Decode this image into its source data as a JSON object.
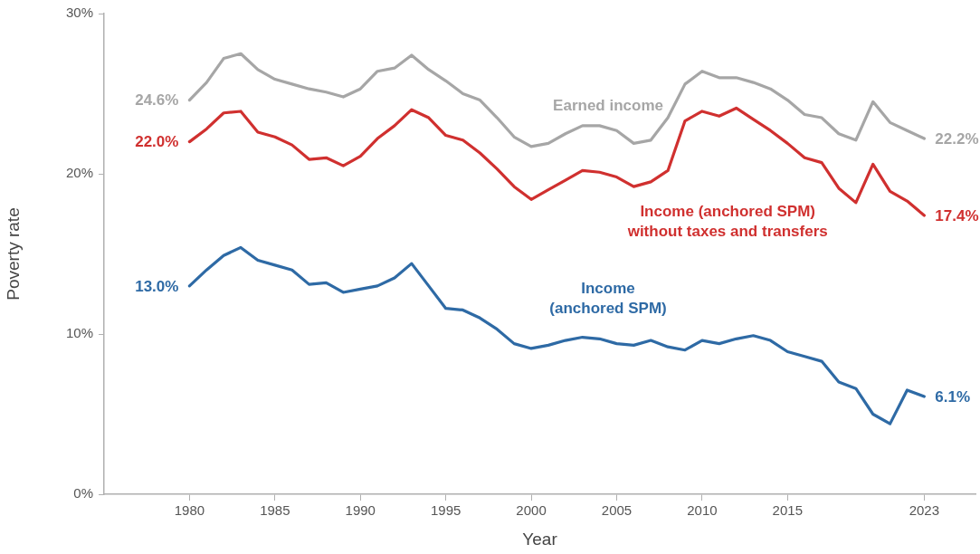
{
  "chart_data": {
    "type": "line",
    "xlabel": "Year",
    "ylabel": "Poverty rate",
    "x": [
      1980,
      1981,
      1982,
      1983,
      1984,
      1985,
      1986,
      1987,
      1988,
      1989,
      1990,
      1991,
      1992,
      1993,
      1994,
      1995,
      1996,
      1997,
      1998,
      1999,
      2000,
      2001,
      2002,
      2003,
      2004,
      2005,
      2006,
      2007,
      2008,
      2009,
      2010,
      2011,
      2012,
      2013,
      2014,
      2015,
      2016,
      2017,
      2018,
      2019,
      2020,
      2021,
      2022,
      2023
    ],
    "series": [
      {
        "name": "Earned income",
        "color": "#a6a6a6",
        "values": [
          24.6,
          25.7,
          27.2,
          27.5,
          26.5,
          25.9,
          25.6,
          25.3,
          25.1,
          24.8,
          25.3,
          26.4,
          26.6,
          27.4,
          26.5,
          25.8,
          25.0,
          24.6,
          23.5,
          22.3,
          21.7,
          21.9,
          22.5,
          23.0,
          23.0,
          22.7,
          21.9,
          22.1,
          23.5,
          25.6,
          26.4,
          26.0,
          26.0,
          25.7,
          25.3,
          24.6,
          23.7,
          23.5,
          22.5,
          22.1,
          24.5,
          23.2,
          22.7,
          22.2
        ],
        "value_labels": [
          "24.6%",
          null,
          null,
          null,
          null,
          null,
          null,
          null,
          null,
          null,
          null,
          null,
          null,
          null,
          null,
          null,
          null,
          null,
          null,
          null,
          null,
          null,
          null,
          null,
          null,
          null,
          null,
          null,
          null,
          null,
          null,
          null,
          null,
          null,
          null,
          null,
          null,
          null,
          null,
          null,
          null,
          null,
          null,
          "22.2%"
        ]
      },
      {
        "name": "Income (anchored SPM) without taxes and transfers",
        "color": "#d0302f",
        "values": [
          22.0,
          22.8,
          23.8,
          23.9,
          22.6,
          22.3,
          21.8,
          20.9,
          21.0,
          20.5,
          21.1,
          22.2,
          23.0,
          24.0,
          23.5,
          22.4,
          22.1,
          21.3,
          20.3,
          19.2,
          18.4,
          19.0,
          19.6,
          20.2,
          20.1,
          19.8,
          19.2,
          19.5,
          20.2,
          23.3,
          23.9,
          23.6,
          24.1,
          23.4,
          22.7,
          21.9,
          21.0,
          20.7,
          19.1,
          18.2,
          20.6,
          18.9,
          18.3,
          17.4
        ],
        "value_labels": [
          "22.0%",
          null,
          null,
          null,
          null,
          null,
          null,
          null,
          null,
          null,
          null,
          null,
          null,
          null,
          null,
          null,
          null,
          null,
          null,
          null,
          null,
          null,
          null,
          null,
          null,
          null,
          null,
          null,
          null,
          null,
          null,
          null,
          null,
          null,
          null,
          null,
          null,
          null,
          null,
          null,
          null,
          null,
          null,
          "17.4%"
        ]
      },
      {
        "name": "Income (anchored SPM)",
        "color": "#2e6aa5",
        "values": [
          13.0,
          14.0,
          14.9,
          15.4,
          14.6,
          14.3,
          14.0,
          13.1,
          13.2,
          12.6,
          12.8,
          13.0,
          13.5,
          14.4,
          13.0,
          11.6,
          11.5,
          11.0,
          10.3,
          9.4,
          9.1,
          9.3,
          9.6,
          9.8,
          9.7,
          9.4,
          9.3,
          9.6,
          9.2,
          9.0,
          9.6,
          9.4,
          9.7,
          9.9,
          9.6,
          8.9,
          8.6,
          8.3,
          7.0,
          6.6,
          5.0,
          4.4,
          6.5,
          6.1
        ],
        "value_labels": [
          "13.0%",
          null,
          null,
          null,
          null,
          null,
          null,
          null,
          null,
          null,
          null,
          null,
          null,
          null,
          null,
          null,
          null,
          null,
          null,
          null,
          null,
          null,
          null,
          null,
          null,
          null,
          null,
          null,
          null,
          null,
          null,
          null,
          null,
          null,
          null,
          null,
          null,
          null,
          null,
          null,
          null,
          null,
          null,
          "6.1%"
        ]
      }
    ],
    "xlim": [
      1975,
      2026
    ],
    "xticks": [
      1980,
      1985,
      1990,
      1995,
      2000,
      2005,
      2010,
      2015,
      2023
    ],
    "ylim": [
      0,
      30
    ],
    "yticks": [
      {
        "value": 0,
        "label": "0%"
      },
      {
        "value": 10,
        "label": "10%"
      },
      {
        "value": 20,
        "label": "20%"
      },
      {
        "value": 30,
        "label": "30%"
      }
    ],
    "grid": false,
    "legend": false,
    "marker": "none",
    "line_style": "solid"
  }
}
